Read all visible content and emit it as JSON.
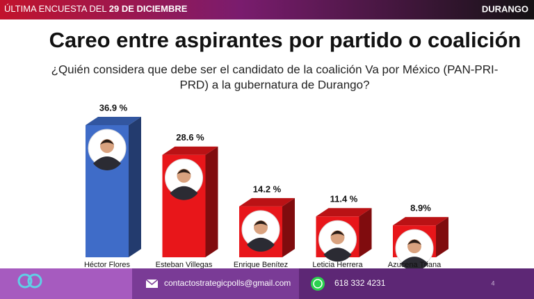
{
  "banner": {
    "left_text": "ÚLTIMA ENCUESTA DEL ",
    "left_bold": "29 DE DICIEMBRE",
    "right_text": "DURANGO"
  },
  "chart_data": {
    "type": "bar3d",
    "title": "Careo entre aspirantes por partido o coalición",
    "subtitle": [
      "¿Quién considera que debe ser el candidato de la coalición Va por México (PAN-PRI-",
      "PRD) a la gubernatura de Durango?"
    ],
    "categories": [
      "Héctor Flores",
      "Esteban Villegas",
      "Enrique Benítez",
      "Leticia Herrera",
      "Azucena Triana"
    ],
    "values": [
      36.9,
      28.6,
      14.2,
      11.4,
      8.9
    ],
    "value_labels": [
      "36.9 %",
      "28.6 %",
      "14.2 %",
      "11.4 %",
      "8.9%"
    ],
    "colors": [
      "#3f6cc8",
      "#e8161a",
      "#e8161a",
      "#e8161a",
      "#e8161a"
    ]
  },
  "footer": {
    "email": "contactostrategicpolls@gmail.com",
    "phone": "618 332 4231",
    "page": "4"
  }
}
